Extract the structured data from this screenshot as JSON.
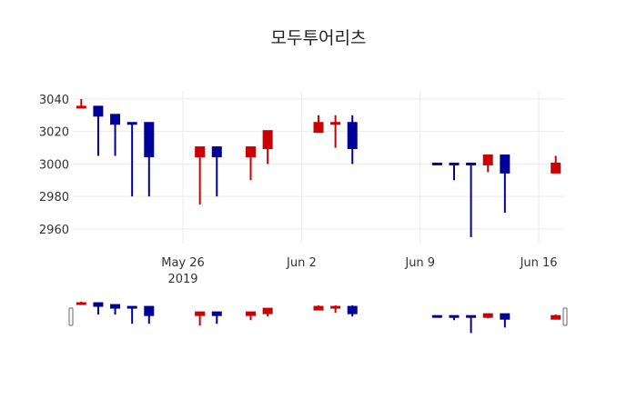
{
  "chart_data": {
    "type": "candlestick",
    "title": "모두투어리츠",
    "xlabel": "",
    "ylabel": "",
    "ylim": [
      2951,
      3045
    ],
    "yticks": [
      2960,
      2980,
      3000,
      3020,
      3040
    ],
    "xticks": [
      {
        "date": "2019-05-26",
        "label": "May 26",
        "sublabel": "2019"
      },
      {
        "date": "2019-06-02",
        "label": "Jun 2",
        "sublabel": ""
      },
      {
        "date": "2019-06-09",
        "label": "Jun 9",
        "sublabel": ""
      },
      {
        "date": "2019-06-16",
        "label": "Jun 16",
        "sublabel": ""
      }
    ],
    "xrange": [
      "2019-05-19T12:00",
      "2019-06-17T12:00"
    ],
    "grid": true,
    "legend": false,
    "rangeslider": true,
    "increasing_color": "#cc0000",
    "decreasing_color": "#000099",
    "series": [
      {
        "date": "2019-05-20",
        "open": 3035,
        "high": 3040,
        "low": 3035,
        "close": 3035,
        "dir": "inc"
      },
      {
        "date": "2019-05-21",
        "open": 3035,
        "high": 3035,
        "low": 3005,
        "close": 3030,
        "dir": "dec"
      },
      {
        "date": "2019-05-22",
        "open": 3030,
        "high": 3030,
        "low": 3005,
        "close": 3025,
        "dir": "dec"
      },
      {
        "date": "2019-05-23",
        "open": 3025,
        "high": 3025,
        "low": 2980,
        "close": 3025,
        "dir": "dec"
      },
      {
        "date": "2019-05-24",
        "open": 3025,
        "high": 3025,
        "low": 2980,
        "close": 3005,
        "dir": "dec"
      },
      {
        "date": "2019-05-27",
        "open": 3005,
        "high": 3010,
        "low": 2975,
        "close": 3010,
        "dir": "inc"
      },
      {
        "date": "2019-05-28",
        "open": 3010,
        "high": 3010,
        "low": 2980,
        "close": 3005,
        "dir": "dec"
      },
      {
        "date": "2019-05-30",
        "open": 3005,
        "high": 3010,
        "low": 2990,
        "close": 3010,
        "dir": "inc"
      },
      {
        "date": "2019-05-31",
        "open": 3010,
        "high": 3020,
        "low": 3000,
        "close": 3020,
        "dir": "inc"
      },
      {
        "date": "2019-06-03",
        "open": 3020,
        "high": 3030,
        "low": 3020,
        "close": 3025,
        "dir": "inc"
      },
      {
        "date": "2019-06-04",
        "open": 3025,
        "high": 3030,
        "low": 3010,
        "close": 3025,
        "dir": "inc"
      },
      {
        "date": "2019-06-05",
        "open": 3025,
        "high": 3030,
        "low": 3000,
        "close": 3010,
        "dir": "dec"
      },
      {
        "date": "2019-06-10",
        "open": 3000,
        "high": 3000,
        "low": 3000,
        "close": 3000,
        "dir": "dec"
      },
      {
        "date": "2019-06-11",
        "open": 3000,
        "high": 3000,
        "low": 2990,
        "close": 3000,
        "dir": "dec"
      },
      {
        "date": "2019-06-12",
        "open": 3000,
        "high": 3000,
        "low": 2955,
        "close": 3000,
        "dir": "dec"
      },
      {
        "date": "2019-06-13",
        "open": 3000,
        "high": 3005,
        "low": 2995,
        "close": 3005,
        "dir": "inc"
      },
      {
        "date": "2019-06-14",
        "open": 3005,
        "high": 3005,
        "low": 2970,
        "close": 2995,
        "dir": "dec"
      },
      {
        "date": "2019-06-17",
        "open": 2995,
        "high": 3005,
        "low": 2995,
        "close": 3000,
        "dir": "inc"
      }
    ]
  }
}
